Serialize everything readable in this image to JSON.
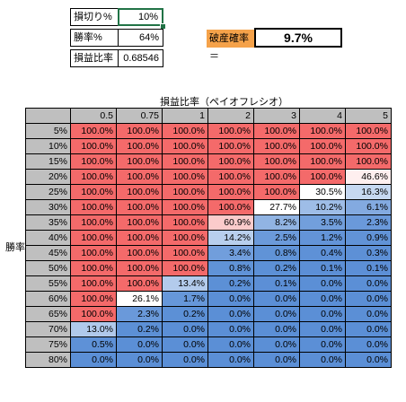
{
  "params": {
    "stop_loss_label": "損切り%",
    "stop_loss_value": "10%",
    "win_rate_label": "勝率%",
    "win_rate_value": "64%",
    "payoff_label": "損益比率",
    "payoff_value": "0.68546"
  },
  "ruin": {
    "label": "破産確率＝",
    "value": "9.7%"
  },
  "matrix": {
    "title": "損益比率（ペイオフレシオ）",
    "row_axis_label": "勝率",
    "columns": [
      "0.5",
      "0.75",
      "1",
      "2",
      "3",
      "4",
      "5"
    ],
    "rows": [
      {
        "label": "5%",
        "values": [
          "100.0%",
          "100.0%",
          "100.0%",
          "100.0%",
          "100.0%",
          "100.0%",
          "100.0%"
        ]
      },
      {
        "label": "10%",
        "values": [
          "100.0%",
          "100.0%",
          "100.0%",
          "100.0%",
          "100.0%",
          "100.0%",
          "100.0%"
        ]
      },
      {
        "label": "15%",
        "values": [
          "100.0%",
          "100.0%",
          "100.0%",
          "100.0%",
          "100.0%",
          "100.0%",
          "100.0%"
        ]
      },
      {
        "label": "20%",
        "values": [
          "100.0%",
          "100.0%",
          "100.0%",
          "100.0%",
          "100.0%",
          "100.0%",
          "46.6%"
        ]
      },
      {
        "label": "25%",
        "values": [
          "100.0%",
          "100.0%",
          "100.0%",
          "100.0%",
          "100.0%",
          "30.5%",
          "16.3%"
        ]
      },
      {
        "label": "30%",
        "values": [
          "100.0%",
          "100.0%",
          "100.0%",
          "100.0%",
          "27.7%",
          "10.2%",
          "6.1%"
        ]
      },
      {
        "label": "35%",
        "values": [
          "100.0%",
          "100.0%",
          "100.0%",
          "60.9%",
          "8.2%",
          "3.5%",
          "2.3%"
        ]
      },
      {
        "label": "40%",
        "values": [
          "100.0%",
          "100.0%",
          "100.0%",
          "14.2%",
          "2.5%",
          "1.2%",
          "0.9%"
        ]
      },
      {
        "label": "45%",
        "values": [
          "100.0%",
          "100.0%",
          "100.0%",
          "3.4%",
          "0.8%",
          "0.4%",
          "0.3%"
        ]
      },
      {
        "label": "50%",
        "values": [
          "100.0%",
          "100.0%",
          "100.0%",
          "0.8%",
          "0.2%",
          "0.1%",
          "0.1%"
        ]
      },
      {
        "label": "55%",
        "values": [
          "100.0%",
          "100.0%",
          "13.4%",
          "0.2%",
          "0.1%",
          "0.0%",
          "0.0%"
        ]
      },
      {
        "label": "60%",
        "values": [
          "100.0%",
          "26.1%",
          "1.7%",
          "0.0%",
          "0.0%",
          "0.0%",
          "0.0%"
        ]
      },
      {
        "label": "65%",
        "values": [
          "100.0%",
          "2.3%",
          "0.2%",
          "0.0%",
          "0.0%",
          "0.0%",
          "0.0%"
        ]
      },
      {
        "label": "70%",
        "values": [
          "13.0%",
          "0.2%",
          "0.0%",
          "0.0%",
          "0.0%",
          "0.0%",
          "0.0%"
        ]
      },
      {
        "label": "75%",
        "values": [
          "0.5%",
          "0.0%",
          "0.0%",
          "0.0%",
          "0.0%",
          "0.0%",
          "0.0%"
        ]
      },
      {
        "label": "80%",
        "values": [
          "0.0%",
          "0.0%",
          "0.0%",
          "0.0%",
          "0.0%",
          "0.0%",
          "0.0%"
        ]
      }
    ]
  },
  "colors": {
    "high": "#f46a6a",
    "mid_white": "#ffffff",
    "low": "#5b8fd6",
    "header_gray": "#bfbfbf",
    "ruin_label_bg": "#f5a24a",
    "selection_green": "#217346"
  }
}
